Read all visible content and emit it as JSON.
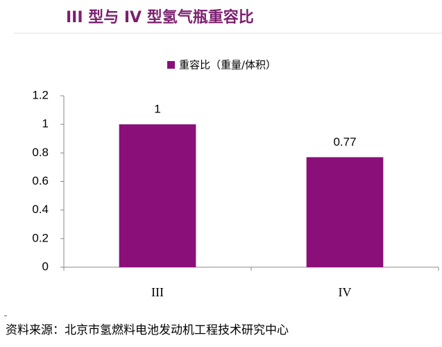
{
  "chart_data": {
    "type": "bar",
    "title": "III 型与 IV 型氢气瓶重容比",
    "legend_label": "重容比（重量/体积）",
    "categories": [
      "III",
      "IV"
    ],
    "values": [
      1,
      0.77
    ],
    "color": "#8a0f79",
    "ylim": [
      0,
      1.2
    ],
    "yticks": [
      0,
      0.2,
      0.4,
      0.6,
      0.8,
      1,
      1.2
    ],
    "source": "资料来源：北京市氢燃料电池发动机工程技术研究中心"
  }
}
